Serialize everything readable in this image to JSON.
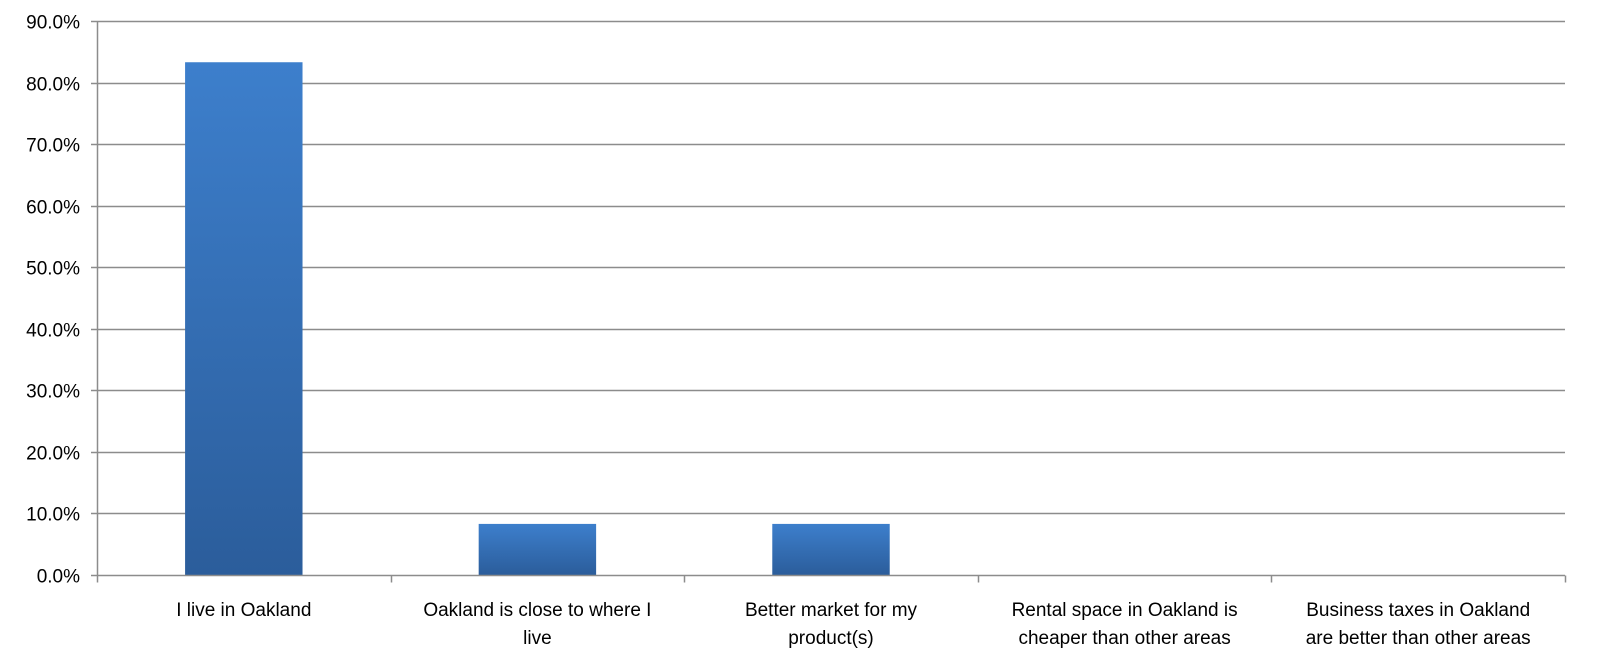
{
  "chart_data": {
    "type": "bar",
    "title": "",
    "xlabel": "",
    "ylabel": "",
    "categories": [
      "I live in Oakland",
      "Oakland is close to where I live",
      "Better market for my product(s)",
      "Rental space in Oakland is cheaper than other areas",
      "Business taxes in Oakland are better than other areas"
    ],
    "category_label_lines": [
      [
        "I live in Oakland"
      ],
      [
        "Oakland is close to where I",
        "live"
      ],
      [
        "Better market for my",
        "product(s)"
      ],
      [
        "Rental space in Oakland is",
        "cheaper than other areas"
      ],
      [
        "Business taxes in Oakland",
        "are better than other areas"
      ]
    ],
    "values": [
      83.3,
      8.3,
      8.3,
      0,
      0
    ],
    "value_unit": "%",
    "ylim": [
      0,
      90
    ],
    "yticks": [
      0,
      10,
      20,
      30,
      40,
      50,
      60,
      70,
      80,
      90
    ],
    "ytick_labels": [
      "0.0%",
      "10.0%",
      "20.0%",
      "30.0%",
      "40.0%",
      "50.0%",
      "60.0%",
      "70.0%",
      "80.0%",
      "90.0%"
    ],
    "grid": true,
    "legend": "none",
    "colors": {
      "bar_top": "#3d7fcc",
      "bar_bottom": "#2b5d9b",
      "grid": "#8c8c8c",
      "axis": "#8c8c8c"
    }
  }
}
